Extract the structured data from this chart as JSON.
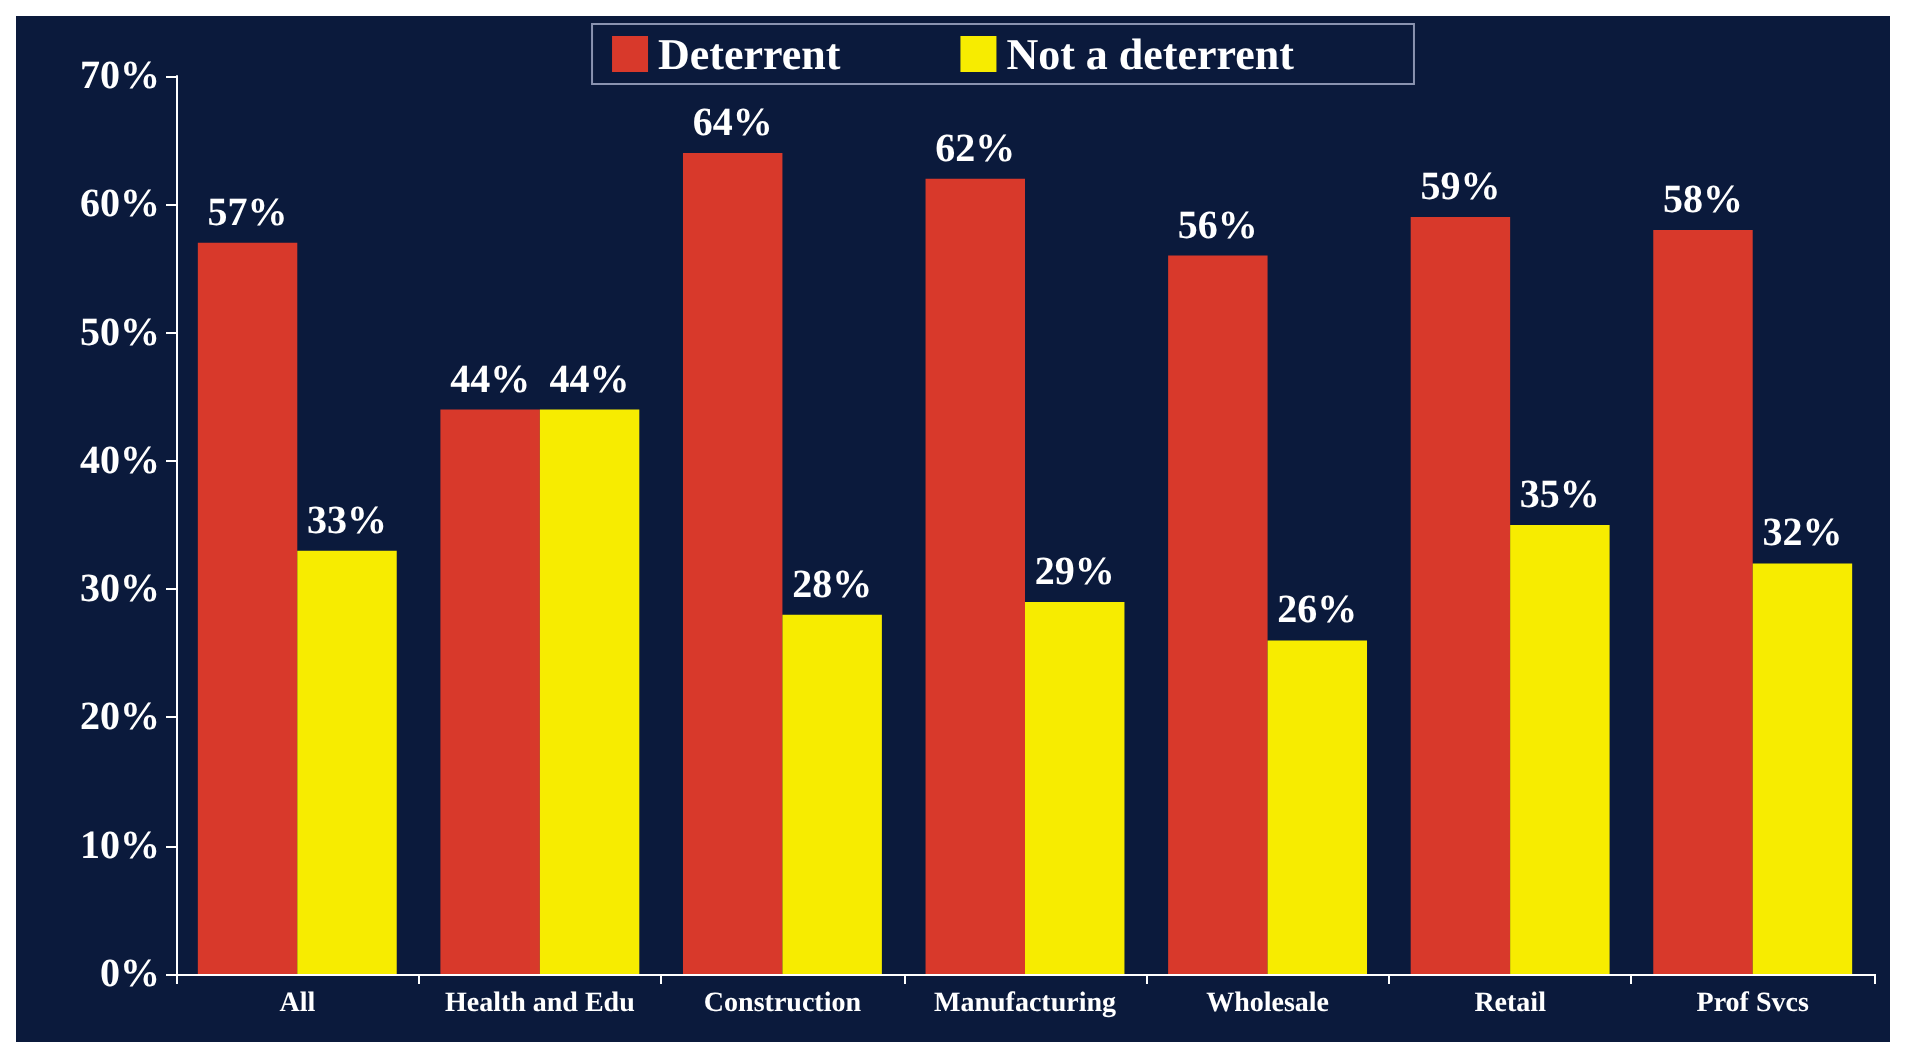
{
  "chart_data": {
    "type": "bar",
    "categories": [
      "All",
      "Health and Edu",
      "Construction",
      "Manufacturing",
      "Wholesale",
      "Retail",
      "Prof Svcs"
    ],
    "series": [
      {
        "name": "Deterrent",
        "color": "#d8392b",
        "values": [
          57,
          44,
          64,
          62,
          56,
          59,
          58
        ],
        "value_labels": [
          "57%",
          "44%",
          "64%",
          "62%",
          "56%",
          "59%",
          "58%"
        ]
      },
      {
        "name": "Not a deterrent",
        "color": "#f7ec00",
        "values": [
          33,
          44,
          28,
          29,
          26,
          35,
          32
        ],
        "value_labels": [
          "33%",
          "44%",
          "28%",
          "29%",
          "26%",
          "35%",
          "32%"
        ]
      }
    ],
    "ylim": [
      0,
      70
    ],
    "yticks": [
      {
        "value": 0,
        "label": "0%"
      },
      {
        "value": 10,
        "label": "10%"
      },
      {
        "value": 20,
        "label": "20%"
      },
      {
        "value": 30,
        "label": "30%"
      },
      {
        "value": 40,
        "label": "40%"
      },
      {
        "value": 50,
        "label": "50%"
      },
      {
        "value": 60,
        "label": "60%"
      },
      {
        "value": 70,
        "label": "70%"
      }
    ],
    "grid": false,
    "legend": "top"
  }
}
